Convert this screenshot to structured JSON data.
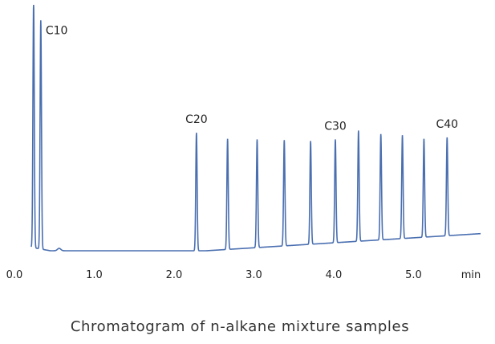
{
  "chart_data": {
    "type": "line",
    "title": "Chromatogram of n-alkane mixture samples",
    "x_unit": "min",
    "xlim": [
      0.0,
      5.9
    ],
    "x_ticks": [
      "0.0",
      "1.0",
      "2.0",
      "3.0",
      "4.0",
      "5.0"
    ],
    "y_axis_shown": false,
    "grid": false,
    "series": [
      {
        "color": "#4a6fb0",
        "peaks": [
          {
            "x": 0.24,
            "height": 1.0
          },
          {
            "x": 0.33,
            "height": 0.93,
            "label": "C10"
          },
          {
            "x": 2.28,
            "height": 0.48,
            "label": "C20"
          },
          {
            "x": 2.67,
            "height": 0.45
          },
          {
            "x": 3.04,
            "height": 0.44
          },
          {
            "x": 3.38,
            "height": 0.43
          },
          {
            "x": 3.71,
            "height": 0.42
          },
          {
            "x": 4.02,
            "height": 0.42,
            "label": "C30"
          },
          {
            "x": 4.31,
            "height": 0.45
          },
          {
            "x": 4.59,
            "height": 0.43
          },
          {
            "x": 4.86,
            "height": 0.42
          },
          {
            "x": 5.13,
            "height": 0.4
          },
          {
            "x": 5.42,
            "height": 0.4,
            "label": "C40"
          }
        ]
      }
    ]
  }
}
